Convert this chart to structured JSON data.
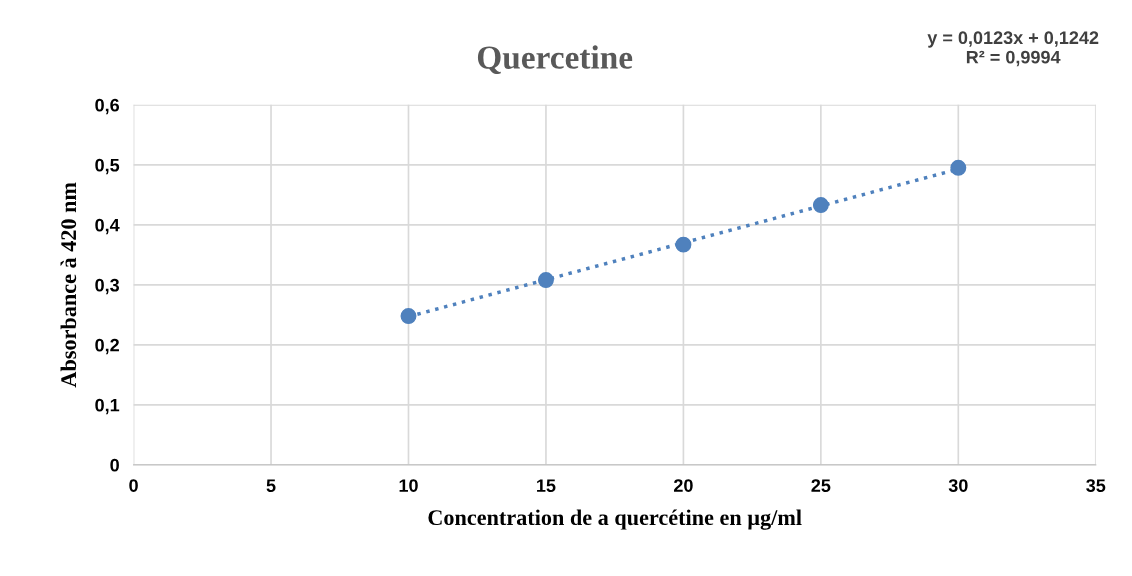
{
  "chart_data": {
    "type": "scatter",
    "title": "Quercetine",
    "xlabel": "Concentration de a quercétine en µg/ml",
    "ylabel": "Absorbance à 420 nm",
    "annotations": [
      "y = 0,0123x + 0,1242\nR² = 0,9994"
    ],
    "series": [
      {
        "color": "#4f81bd",
        "marker": "circle",
        "x": [
          10,
          15,
          20,
          25,
          30
        ],
        "values": [
          0.248,
          0.308,
          0.367,
          0.433,
          0.495
        ]
      },
      {
        "type": "line",
        "color": "#4f81bd",
        "marker": "none",
        "line_style": "dotted",
        "x": [
          10,
          30
        ],
        "values": [
          0.247,
          0.493
        ]
      }
    ],
    "xlim": [
      0,
      35
    ],
    "xticks": [
      0,
      5,
      10,
      15,
      20,
      25,
      30,
      35
    ],
    "ylim": [
      0,
      0.6
    ],
    "yticks": [
      {
        "value": 0,
        "label": "0"
      },
      {
        "value": 0.1,
        "label": "0,1"
      },
      {
        "value": 0.2,
        "label": "0,2"
      },
      {
        "value": 0.3,
        "label": "0,3"
      },
      {
        "value": 0.4,
        "label": "0,4"
      },
      {
        "value": 0.5,
        "label": "0,5"
      },
      {
        "value": 0.6,
        "label": "0,6"
      }
    ],
    "grid": true
  }
}
